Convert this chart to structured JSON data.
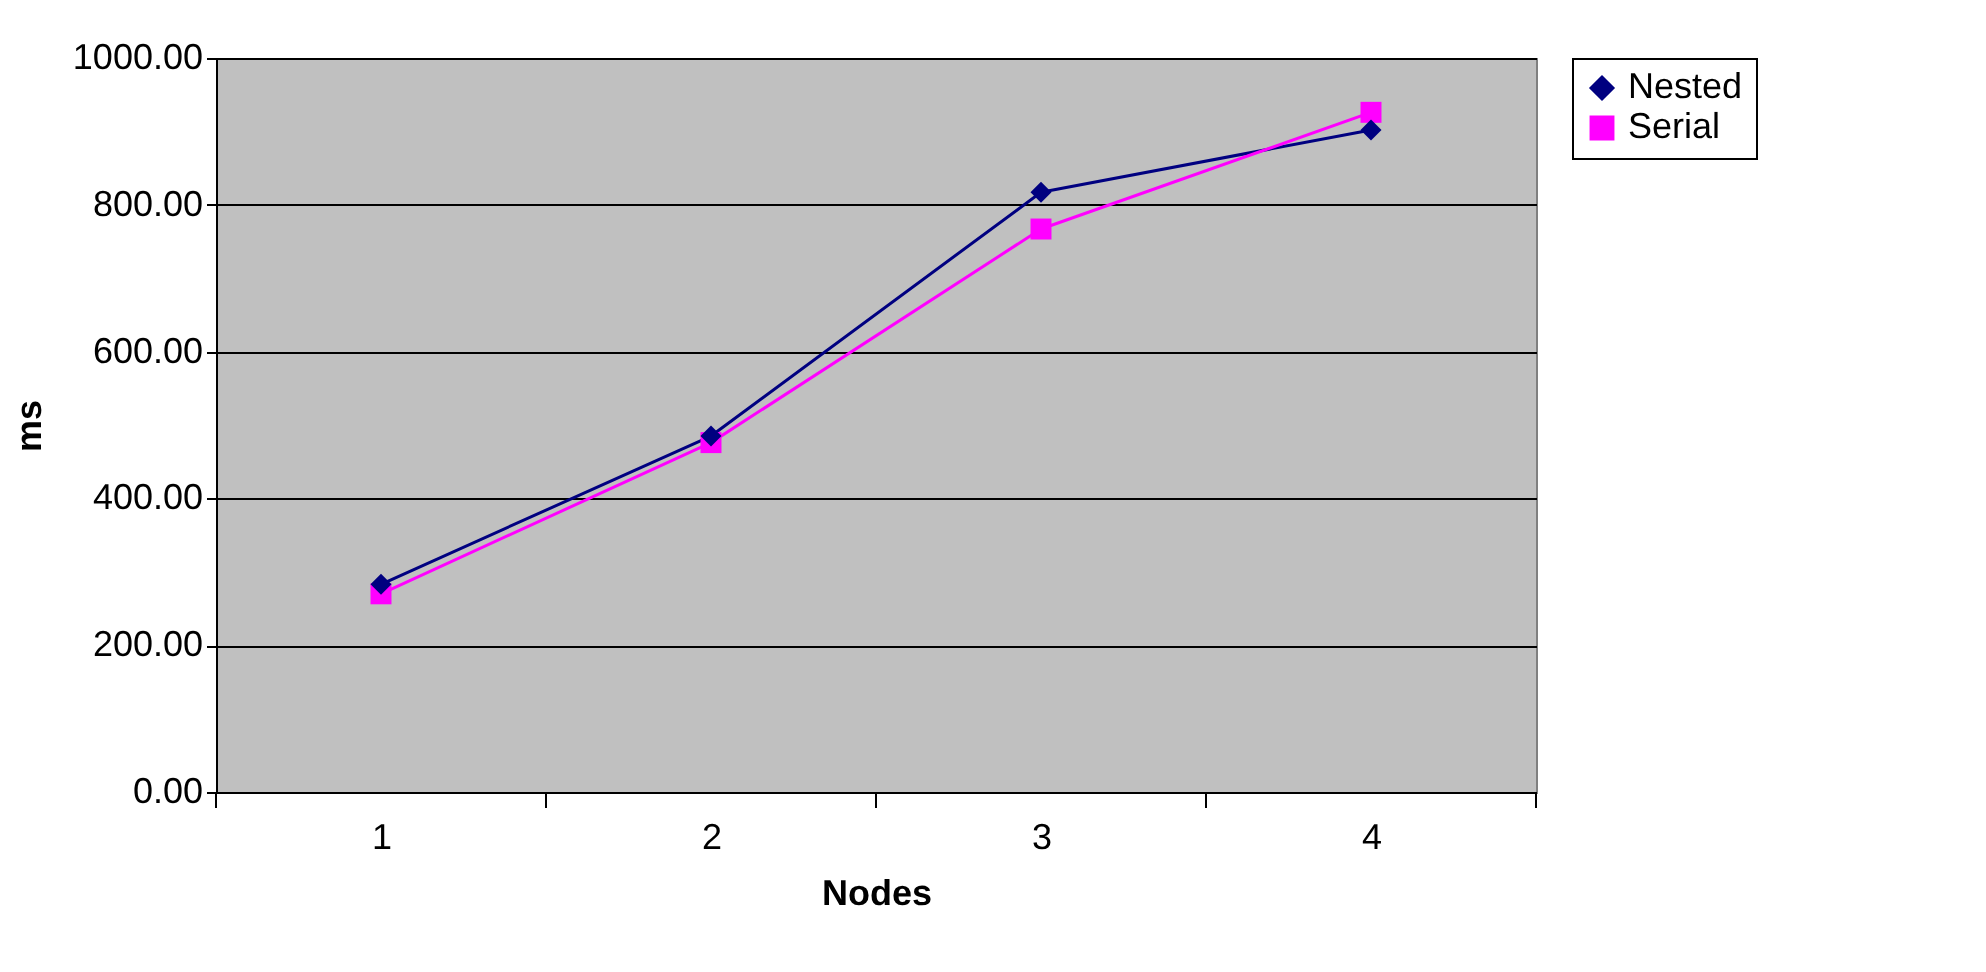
{
  "chart_data": {
    "type": "line",
    "xlabel": "Nodes",
    "ylabel": "ms",
    "categories": [
      "1",
      "2",
      "3",
      "4"
    ],
    "series": [
      {
        "name": "Nested",
        "color": "#000080",
        "marker": "diamond",
        "values": [
          283,
          485,
          817,
          902
        ]
      },
      {
        "name": "Serial",
        "color": "#ff00ff",
        "marker": "square",
        "values": [
          270,
          476,
          767,
          926
        ]
      }
    ],
    "ylim": [
      0,
      1000
    ],
    "yticks": [
      {
        "value": 0,
        "label": "0.00"
      },
      {
        "value": 200,
        "label": "200.00"
      },
      {
        "value": 400,
        "label": "400.00"
      },
      {
        "value": 600,
        "label": "600.00"
      },
      {
        "value": 800,
        "label": "800.00"
      },
      {
        "value": 1000,
        "label": "1000.00"
      }
    ],
    "grid": "y",
    "legend": "right"
  }
}
